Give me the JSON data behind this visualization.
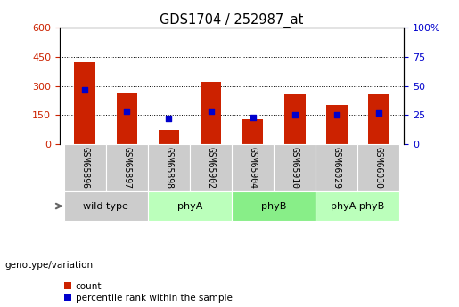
{
  "title": "GDS1704 / 252987_at",
  "samples": [
    "GSM65896",
    "GSM65897",
    "GSM65898",
    "GSM65902",
    "GSM65904",
    "GSM65910",
    "GSM66029",
    "GSM66030"
  ],
  "count_values": [
    420,
    265,
    75,
    320,
    130,
    255,
    200,
    255
  ],
  "percentile_values": [
    47,
    28,
    22,
    28,
    23,
    25,
    25,
    27
  ],
  "group_defs": [
    {
      "label": "wild type",
      "start": 0,
      "end": 2,
      "color": "#cccccc"
    },
    {
      "label": "phyA",
      "start": 2,
      "end": 4,
      "color": "#bbffbb"
    },
    {
      "label": "phyB",
      "start": 4,
      "end": 6,
      "color": "#88ee88"
    },
    {
      "label": "phyA phyB",
      "start": 6,
      "end": 8,
      "color": "#bbffbb"
    }
  ],
  "bar_color": "#cc2200",
  "dot_color": "#0000cc",
  "left_ylim": [
    0,
    600
  ],
  "right_ylim": [
    0,
    100
  ],
  "left_yticks": [
    0,
    150,
    300,
    450,
    600
  ],
  "right_yticks": [
    0,
    25,
    50,
    75,
    100
  ],
  "right_yticklabels": [
    "0",
    "25",
    "50",
    "75",
    "100%"
  ],
  "left_ylabel_color": "#cc2200",
  "right_ylabel_color": "#0000cc",
  "grid_color": "black",
  "bar_width": 0.5,
  "pct_scale": 6,
  "legend_count_label": "count",
  "legend_pct_label": "percentile rank within the sample",
  "genotype_label": "genotype/variation",
  "sample_box_color": "#cccccc"
}
